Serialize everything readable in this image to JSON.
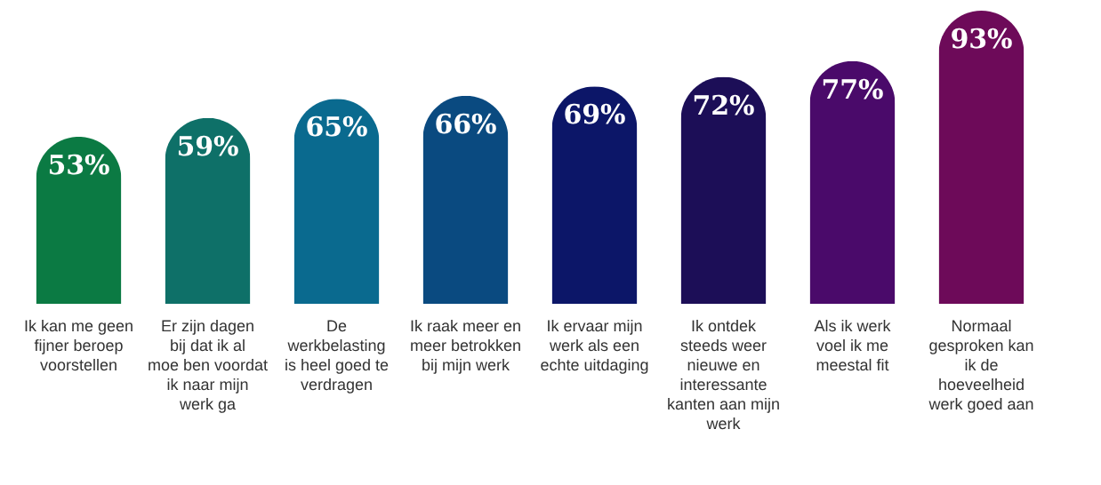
{
  "chart_data": {
    "type": "bar",
    "categories": [
      "Ik kan me geen fijner beroep voorstellen",
      "Er zijn dagen bij dat ik al moe ben voordat ik naar mijn werk ga",
      "De werkbelasting is heel goed te verdragen",
      "Ik raak meer en meer betrokken bij mijn werk",
      "Ik ervaar mijn werk als een echte uitdaging",
      "Ik ontdek steeds weer nieuwe en interessante kanten aan mijn werk",
      "Als ik werk voel ik me meestal fit",
      "Normaal gesproken kan ik de hoeveelheid werk goed aan"
    ],
    "values": [
      53,
      59,
      65,
      66,
      69,
      72,
      77,
      93
    ],
    "colors": [
      "#0b7a43",
      "#0e7068",
      "#0a6a8f",
      "#0a4a80",
      "#0c1668",
      "#1c0e57",
      "#4a0a6a",
      "#6d0a59"
    ],
    "value_labels": [
      "53%",
      "59%",
      "65%",
      "66%",
      "69%",
      "72%",
      "77%",
      "93%"
    ]
  }
}
